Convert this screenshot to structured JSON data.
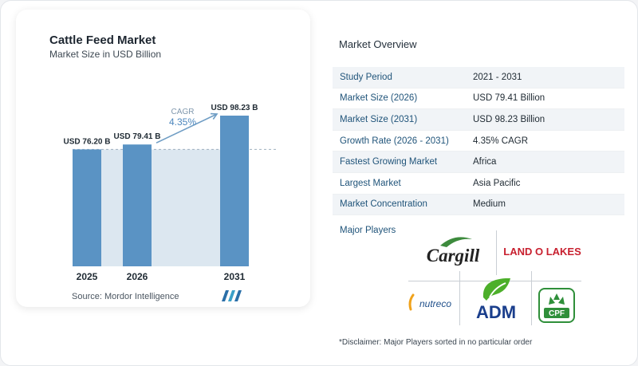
{
  "chart": {
    "title": "Cattle Feed Market",
    "subtitle": "Market Size in USD Billion",
    "source": "Source:  Mordor Intelligence",
    "cagr_label": "CAGR",
    "cagr_value": "4.35%"
  },
  "chart_data": {
    "type": "bar",
    "categories": [
      "2025",
      "2026",
      "2031"
    ],
    "values": [
      76.2,
      79.41,
      98.23
    ],
    "data_labels": [
      "USD 76.20 B",
      "USD 79.41 B",
      "USD 98.23 B"
    ],
    "title": "Cattle Feed Market",
    "subtitle": "Market Size in USD Billion",
    "xlabel": "",
    "ylabel": "",
    "ylim": [
      0,
      105
    ],
    "grid": false,
    "annotation": "CAGR 4.35%",
    "colors": {
      "bar": "#5a93c4",
      "band": "#dce7f0",
      "dashed": "#9fb0bf"
    }
  },
  "overview": {
    "title": "Market Overview",
    "rows": [
      {
        "label": "Study Period",
        "value": "2021 - 2031"
      },
      {
        "label": "Market Size (2026)",
        "value": "USD 79.41 Billion"
      },
      {
        "label": "Market Size (2031)",
        "value": "USD 98.23 Billion"
      },
      {
        "label": "Growth Rate (2026 - 2031)",
        "value": "4.35% CAGR"
      },
      {
        "label": "Fastest Growing Market",
        "value": "Africa"
      },
      {
        "label": "Largest Market",
        "value": "Asia Pacific"
      },
      {
        "label": "Market Concentration",
        "value": "Medium"
      }
    ],
    "players_label": "Major Players",
    "players": [
      "Cargill",
      "LAND O LAKES",
      "nutreco",
      "ADM",
      "CPF"
    ],
    "disclaimer": "*Disclaimer: Major Players sorted in no particular order"
  },
  "colors": {
    "accent": "#20547a",
    "bar": "#5a93c4",
    "cargill_green": "#3d8b3d",
    "landolakes_red": "#c8202f",
    "adm_blue": "#1a3e8c",
    "adm_green": "#4caf2a",
    "cpf_green": "#2f8f3a"
  }
}
